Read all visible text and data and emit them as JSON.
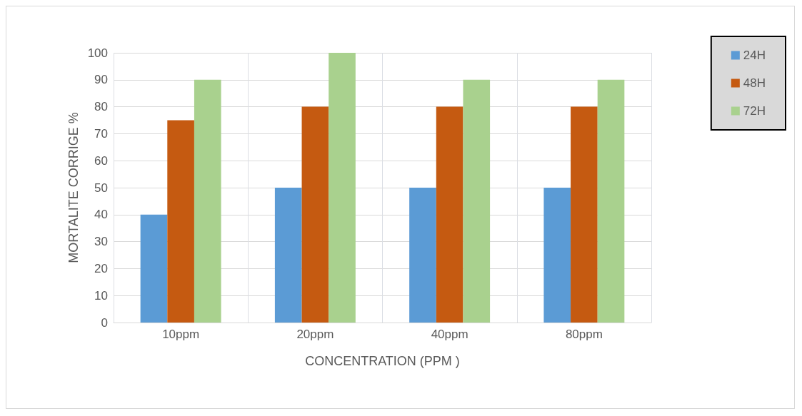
{
  "chart_data": {
    "type": "bar",
    "xlabel": "CONCENTRATION (PPM )",
    "ylabel": "MORTALITE CORRIGE %",
    "categories": [
      "10ppm",
      "20ppm",
      "40ppm",
      "80ppm"
    ],
    "series": [
      {
        "name": "24H",
        "color": "#5b9bd5",
        "values": [
          40,
          50,
          50,
          50
        ]
      },
      {
        "name": "48H",
        "color": "#c55a11",
        "values": [
          75,
          80,
          80,
          80
        ]
      },
      {
        "name": "72H",
        "color": "#a9d18e",
        "values": [
          90,
          100,
          90,
          90
        ]
      }
    ],
    "ylim": [
      0,
      100
    ],
    "yticks": [
      0,
      10,
      20,
      30,
      40,
      50,
      60,
      70,
      80,
      90,
      100
    ],
    "grid": true,
    "legend": "top right"
  }
}
